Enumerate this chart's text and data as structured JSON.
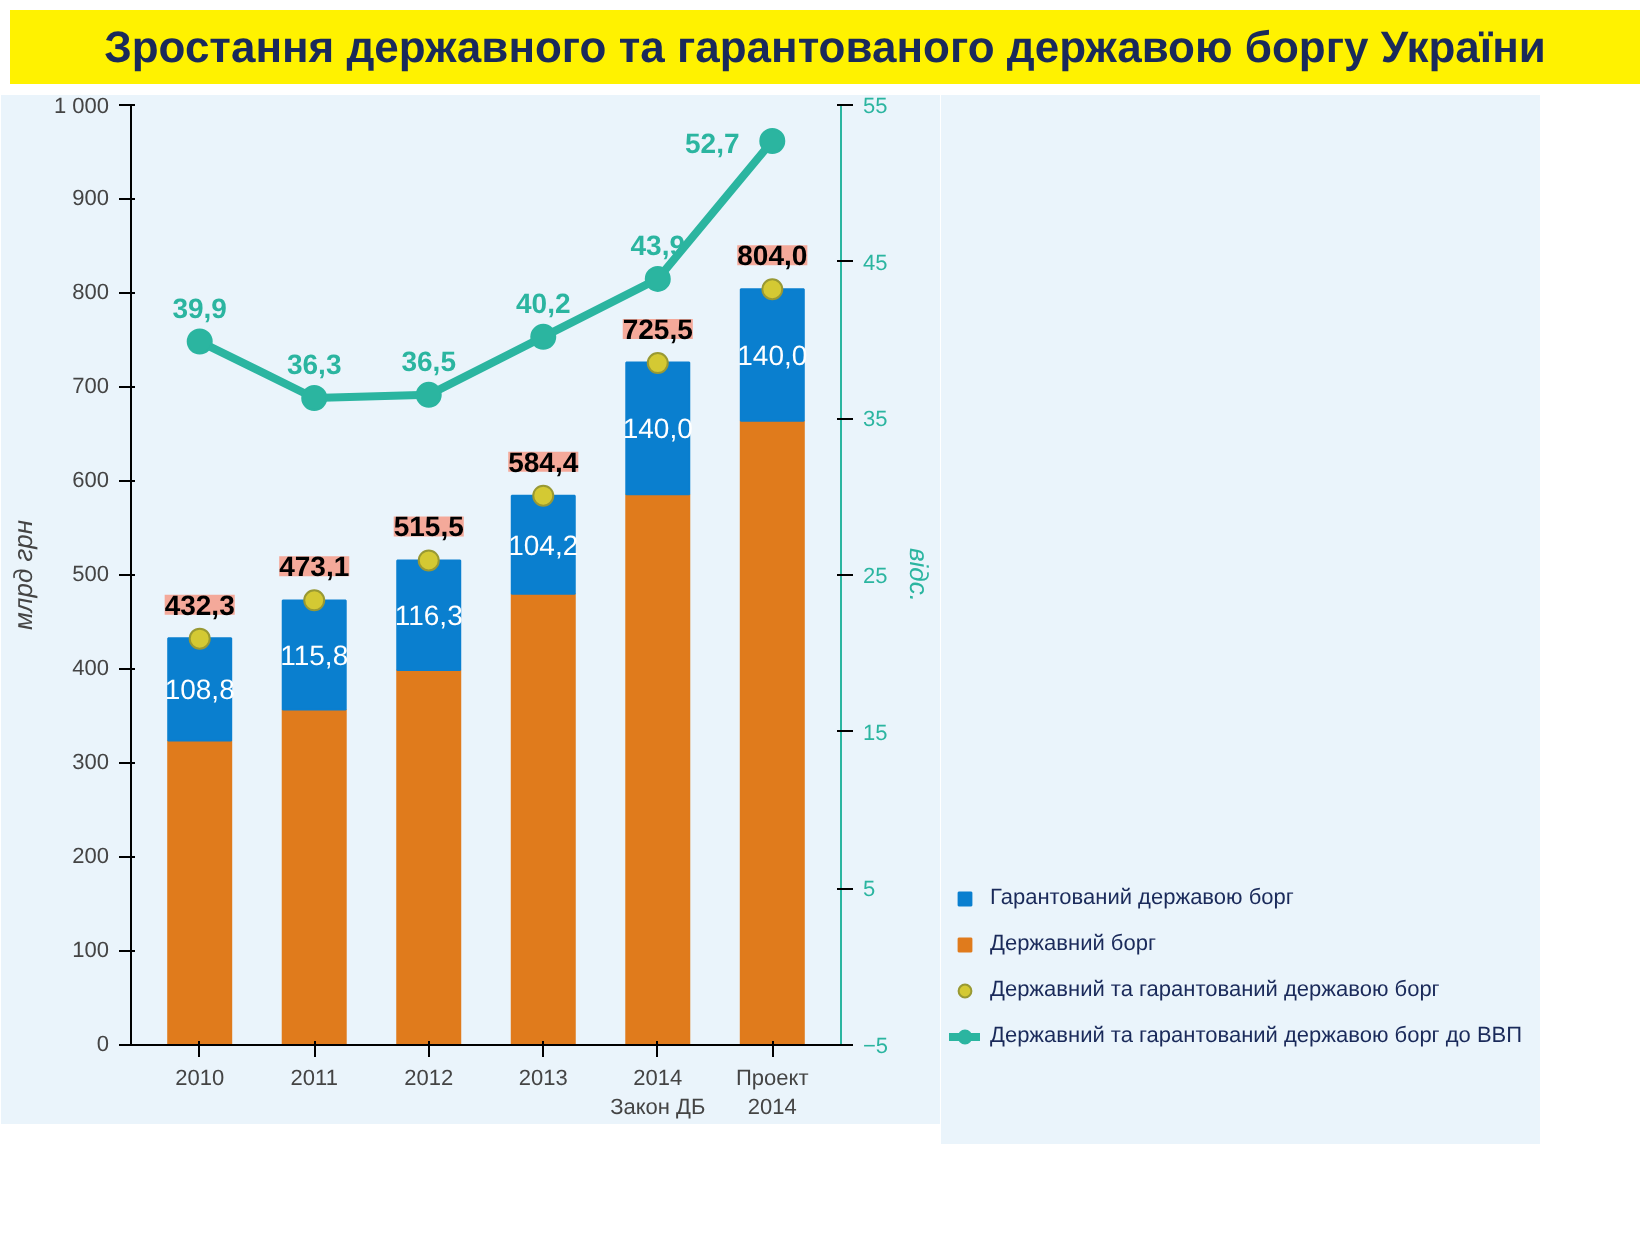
{
  "chart_data": {
    "type": "bar",
    "stacked": true,
    "title": "Зростання державного та гарантованого державою боргу України",
    "ylabel": "млрд грн",
    "y2label": "відс.",
    "categories": [
      "2010",
      "2011",
      "2012",
      "2013",
      "2014 Закон ДБ",
      "Проект 2014"
    ],
    "ylim": [
      0,
      1000
    ],
    "yticks": [
      0,
      100,
      200,
      300,
      400,
      500,
      600,
      700,
      800,
      900,
      {
        "value": 1000,
        "label": "1 000"
      }
    ],
    "y2lim": [
      -5,
      55
    ],
    "y2ticks": [
      -5,
      5,
      15,
      25,
      35,
      45,
      55
    ],
    "series": [
      {
        "name": "Державний борг",
        "color": "#e07b1c",
        "values": [
          324,
          357,
          399,
          480,
          586,
          664
        ]
      },
      {
        "name": "Гарантований державою борг",
        "color": "#0a7fcf",
        "values": [
          108.8,
          115.8,
          116.3,
          104.2,
          140.0,
          140.0
        ],
        "value_labels": [
          "108,8",
          "115,8",
          "116,3",
          "104,2",
          "140,0",
          "140,0"
        ]
      },
      {
        "name": "Державний та гарантований державою борг",
        "type": "scatter",
        "color": "#d4c933",
        "values": [
          432.3,
          473.1,
          515.5,
          584.4,
          725.5,
          804.0
        ],
        "value_labels": [
          "432,3",
          "473,1",
          "515,5",
          "584,4",
          "725,5",
          "804,0"
        ]
      },
      {
        "name": "Державний та гарантований державою борг до ВВП",
        "type": "line",
        "axis": "y2",
        "color": "#2bb5a0",
        "marker": "circle",
        "values": [
          39.9,
          36.3,
          36.5,
          40.2,
          43.9,
          52.7
        ],
        "value_labels": [
          "39,9",
          "36,3",
          "36,5",
          "40,2",
          "43,9",
          "52,7"
        ]
      }
    ],
    "grid": false,
    "legend": "bottom right"
  }
}
